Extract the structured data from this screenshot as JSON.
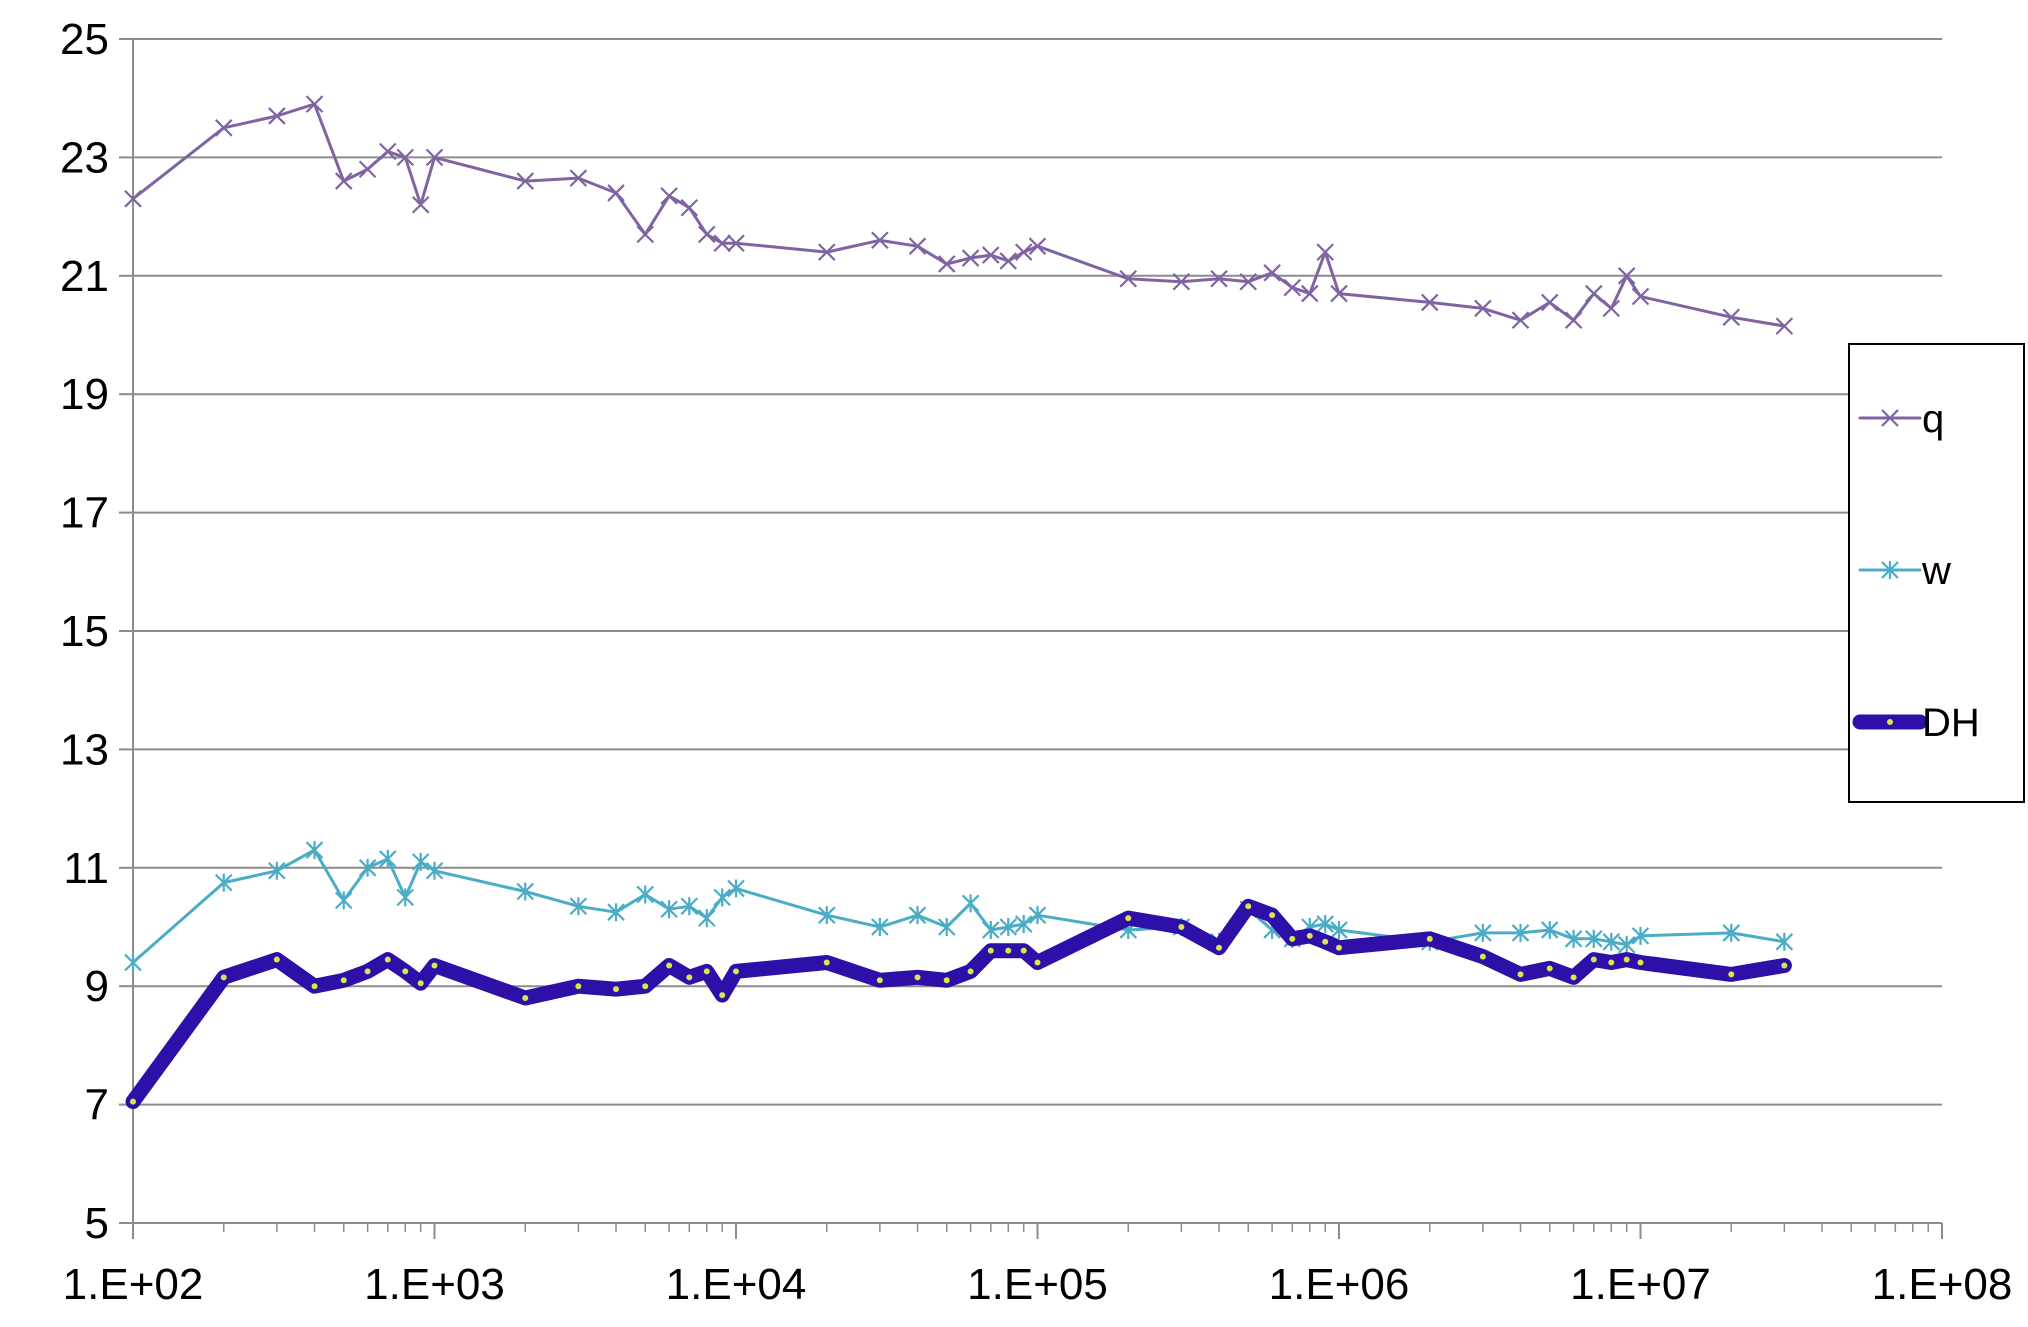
{
  "chart_data": {
    "type": "line",
    "x_scale": "log",
    "xlim": [
      100,
      100000000
    ],
    "ylim": [
      5,
      25
    ],
    "grid": "horizontal",
    "legend_position": "right",
    "y_ticks": [
      "5",
      "7",
      "9",
      "11",
      "13",
      "15",
      "17",
      "19",
      "21",
      "23",
      "25"
    ],
    "x_ticks": [
      "1.E+02",
      "1.E+03",
      "1.E+04",
      "1.E+05",
      "1.E+06",
      "1.E+07",
      "1.E+08"
    ],
    "x": [
      100,
      200,
      300,
      400,
      500,
      600,
      700,
      800,
      900,
      1000,
      2000,
      3000,
      4000,
      5000,
      6000,
      7000,
      8000,
      9000,
      10000,
      20000,
      30000,
      40000,
      50000,
      60000,
      70000,
      80000,
      90000,
      100000,
      200000,
      300000,
      400000,
      500000,
      600000,
      700000,
      800000,
      900000,
      1000000,
      2000000,
      3000000,
      4000000,
      5000000,
      6000000,
      7000000,
      8000000,
      9000000,
      10000000,
      20000000,
      30000000
    ],
    "series": [
      {
        "name": "q",
        "color": "#8064a2",
        "marker": "x-cross",
        "values": [
          22.3,
          23.5,
          23.7,
          23.9,
          22.6,
          22.8,
          23.1,
          23.0,
          22.2,
          23.0,
          22.6,
          22.65,
          22.4,
          21.7,
          22.35,
          22.15,
          21.7,
          21.55,
          21.55,
          21.4,
          21.6,
          21.5,
          21.2,
          21.3,
          21.35,
          21.25,
          21.4,
          21.5,
          20.95,
          20.9,
          20.95,
          20.9,
          21.05,
          20.8,
          20.7,
          21.4,
          20.7,
          20.55,
          20.45,
          20.25,
          20.55,
          20.25,
          20.7,
          20.45,
          21.0,
          20.65,
          20.3,
          20.15
        ]
      },
      {
        "name": "w",
        "color": "#4bacc6",
        "marker": "asterisk",
        "values": [
          9.4,
          10.75,
          10.95,
          11.3,
          10.45,
          11.0,
          11.15,
          10.5,
          11.1,
          10.95,
          10.6,
          10.35,
          10.25,
          10.55,
          10.3,
          10.35,
          10.15,
          10.5,
          10.65,
          10.2,
          10.0,
          10.2,
          10.0,
          10.4,
          9.95,
          10.0,
          10.05,
          10.2,
          9.95,
          10.0,
          9.75,
          10.3,
          9.95,
          9.8,
          10.0,
          10.05,
          9.95,
          9.75,
          9.9,
          9.9,
          9.95,
          9.8,
          9.8,
          9.75,
          9.7,
          9.85,
          9.9,
          9.75
        ]
      },
      {
        "name": "DH",
        "color": "#2e0fa8",
        "marker": "dot",
        "values": [
          7.05,
          9.15,
          9.45,
          9.0,
          9.1,
          9.25,
          9.45,
          9.25,
          9.05,
          9.35,
          8.8,
          9.0,
          8.95,
          9.0,
          9.35,
          9.15,
          9.25,
          8.85,
          9.25,
          9.4,
          9.1,
          9.15,
          9.1,
          9.25,
          9.6,
          9.6,
          9.6,
          9.4,
          10.15,
          10.0,
          9.65,
          10.35,
          10.2,
          9.8,
          9.85,
          9.75,
          9.65,
          9.8,
          9.5,
          9.2,
          9.3,
          9.15,
          9.45,
          9.4,
          9.45,
          9.4,
          9.2,
          9.35
        ]
      }
    ]
  }
}
